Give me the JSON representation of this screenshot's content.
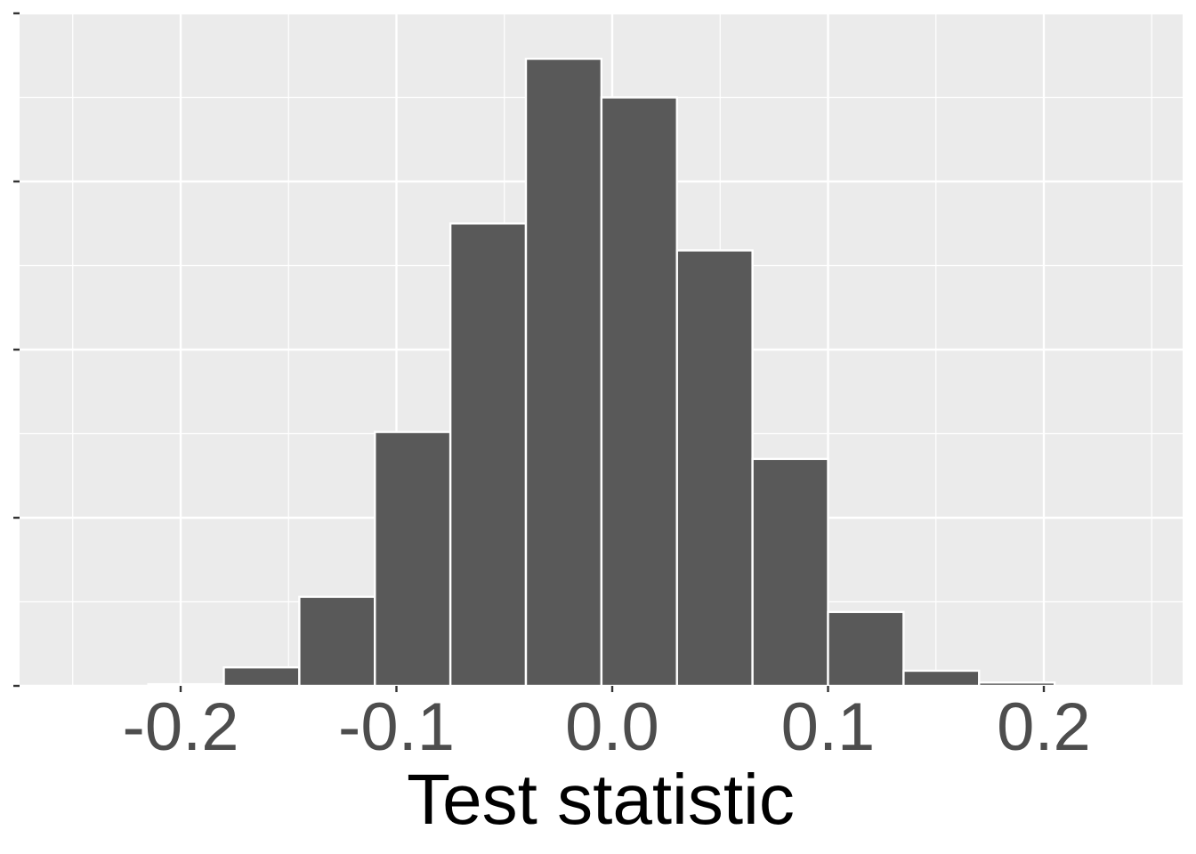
{
  "chart_data": {
    "type": "bar",
    "subtype": "histogram",
    "title": "",
    "xlabel": "Test statistic",
    "ylabel": "",
    "x_tick_labels": [
      "-0.2",
      "-0.1",
      "0.0",
      "0.1",
      "0.2"
    ],
    "x_ticks": [
      -0.2,
      -0.1,
      0.0,
      0.1,
      0.2
    ],
    "y_tick_labels": [
      "",
      "",
      "",
      "",
      ""
    ],
    "y_ticks_relative": [
      0,
      1,
      2,
      3,
      4
    ],
    "xlim": [
      -0.27,
      0.265
    ],
    "ylim_relative": [
      0,
      4
    ],
    "grid": true,
    "legend": "none",
    "bin_width": 0.035,
    "bins": [
      {
        "x_start": -0.215,
        "x_end": -0.18,
        "height_relative": 0.01
      },
      {
        "x_start": -0.18,
        "x_end": -0.145,
        "height_relative": 0.11
      },
      {
        "x_start": -0.145,
        "x_end": -0.11,
        "height_relative": 0.53
      },
      {
        "x_start": -0.11,
        "x_end": -0.075,
        "height_relative": 1.51
      },
      {
        "x_start": -0.075,
        "x_end": -0.04,
        "height_relative": 2.75
      },
      {
        "x_start": -0.04,
        "x_end": -0.005,
        "height_relative": 3.73
      },
      {
        "x_start": -0.005,
        "x_end": 0.03,
        "height_relative": 3.5
      },
      {
        "x_start": 0.03,
        "x_end": 0.065,
        "height_relative": 2.59
      },
      {
        "x_start": 0.065,
        "x_end": 0.1,
        "height_relative": 1.35
      },
      {
        "x_start": 0.1,
        "x_end": 0.135,
        "height_relative": 0.44
      },
      {
        "x_start": 0.135,
        "x_end": 0.17,
        "height_relative": 0.09
      },
      {
        "x_start": 0.17,
        "x_end": 0.205,
        "height_relative": 0.02
      }
    ],
    "categories": [
      "-0.198",
      "-0.163",
      "-0.128",
      "-0.093",
      "-0.058",
      "-0.023",
      "0.013",
      "0.048",
      "0.083",
      "0.118",
      "0.153",
      "0.188"
    ],
    "values": [
      0.01,
      0.11,
      0.53,
      1.51,
      2.75,
      3.73,
      3.5,
      2.59,
      1.35,
      0.44,
      0.09,
      0.02
    ],
    "colors": {
      "panel_background": "#ebebeb",
      "grid_major": "#ffffff",
      "grid_minor": "#ffffff",
      "bar_fill": "#595959",
      "bar_outline": "#ffffff",
      "tick_label": "#4d4d4d",
      "axis_title": "#000000",
      "tick_mark": "#333333"
    }
  }
}
